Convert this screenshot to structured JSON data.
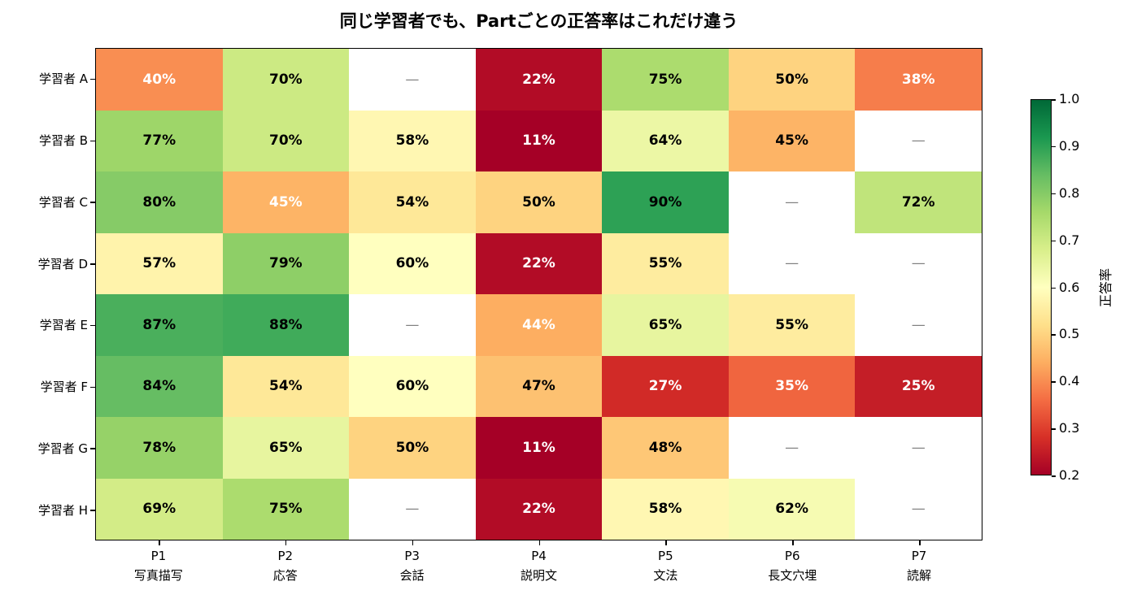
{
  "title": "同じ学習者でも、Partごとの正答率はこれだけ違う",
  "chart_data": {
    "type": "heatmap",
    "rows": [
      "学習者 A",
      "学習者 B",
      "学習者 C",
      "学習者 D",
      "学習者 E",
      "学習者 F",
      "学習者 G",
      "学習者 H"
    ],
    "columns": [
      {
        "part": "P1",
        "name": "写真描写"
      },
      {
        "part": "P2",
        "name": "応答"
      },
      {
        "part": "P3",
        "name": "会話"
      },
      {
        "part": "P4",
        "name": "説明文"
      },
      {
        "part": "P5",
        "name": "文法"
      },
      {
        "part": "P6",
        "name": "長文穴埋"
      },
      {
        "part": "P7",
        "name": "読解"
      }
    ],
    "null_label": "—",
    "cells": [
      [
        {
          "v": 40,
          "t": "40%",
          "c": "light"
        },
        {
          "v": 70,
          "t": "70%",
          "c": "dark"
        },
        {
          "v": null,
          "t": "—",
          "c": "na"
        },
        {
          "v": 22,
          "t": "22%",
          "c": "light"
        },
        {
          "v": 75,
          "t": "75%",
          "c": "dark"
        },
        {
          "v": 50,
          "t": "50%",
          "c": "dark"
        },
        {
          "v": 38,
          "t": "38%",
          "c": "light"
        }
      ],
      [
        {
          "v": 77,
          "t": "77%",
          "c": "dark"
        },
        {
          "v": 70,
          "t": "70%",
          "c": "dark"
        },
        {
          "v": 58,
          "t": "58%",
          "c": "dark"
        },
        {
          "v": 11,
          "t": "11%",
          "c": "light"
        },
        {
          "v": 64,
          "t": "64%",
          "c": "dark"
        },
        {
          "v": 45,
          "t": "45%",
          "c": "dark"
        },
        {
          "v": null,
          "t": "—",
          "c": "na"
        }
      ],
      [
        {
          "v": 80,
          "t": "80%",
          "c": "dark"
        },
        {
          "v": 45,
          "t": "45%",
          "c": "light"
        },
        {
          "v": 54,
          "t": "54%",
          "c": "dark"
        },
        {
          "v": 50,
          "t": "50%",
          "c": "dark"
        },
        {
          "v": 90,
          "t": "90%",
          "c": "dark"
        },
        {
          "v": null,
          "t": "—",
          "c": "na"
        },
        {
          "v": 72,
          "t": "72%",
          "c": "dark"
        }
      ],
      [
        {
          "v": 57,
          "t": "57%",
          "c": "dark"
        },
        {
          "v": 79,
          "t": "79%",
          "c": "dark"
        },
        {
          "v": 60,
          "t": "60%",
          "c": "dark"
        },
        {
          "v": 22,
          "t": "22%",
          "c": "light"
        },
        {
          "v": 55,
          "t": "55%",
          "c": "dark"
        },
        {
          "v": null,
          "t": "—",
          "c": "na"
        },
        {
          "v": null,
          "t": "—",
          "c": "na"
        }
      ],
      [
        {
          "v": 87,
          "t": "87%",
          "c": "dark"
        },
        {
          "v": 88,
          "t": "88%",
          "c": "dark"
        },
        {
          "v": null,
          "t": "—",
          "c": "na"
        },
        {
          "v": 44,
          "t": "44%",
          "c": "light"
        },
        {
          "v": 65,
          "t": "65%",
          "c": "dark"
        },
        {
          "v": 55,
          "t": "55%",
          "c": "dark"
        },
        {
          "v": null,
          "t": "—",
          "c": "na"
        }
      ],
      [
        {
          "v": 84,
          "t": "84%",
          "c": "dark"
        },
        {
          "v": 54,
          "t": "54%",
          "c": "dark"
        },
        {
          "v": 60,
          "t": "60%",
          "c": "dark"
        },
        {
          "v": 47,
          "t": "47%",
          "c": "dark"
        },
        {
          "v": 27,
          "t": "27%",
          "c": "light"
        },
        {
          "v": 35,
          "t": "35%",
          "c": "light"
        },
        {
          "v": 25,
          "t": "25%",
          "c": "light"
        }
      ],
      [
        {
          "v": 78,
          "t": "78%",
          "c": "dark"
        },
        {
          "v": 65,
          "t": "65%",
          "c": "dark"
        },
        {
          "v": 50,
          "t": "50%",
          "c": "dark"
        },
        {
          "v": 11,
          "t": "11%",
          "c": "light"
        },
        {
          "v": 48,
          "t": "48%",
          "c": "dark"
        },
        {
          "v": null,
          "t": "—",
          "c": "na"
        },
        {
          "v": null,
          "t": "—",
          "c": "na"
        }
      ],
      [
        {
          "v": 69,
          "t": "69%",
          "c": "dark"
        },
        {
          "v": 75,
          "t": "75%",
          "c": "dark"
        },
        {
          "v": null,
          "t": "—",
          "c": "na"
        },
        {
          "v": 22,
          "t": "22%",
          "c": "light"
        },
        {
          "v": 58,
          "t": "58%",
          "c": "dark"
        },
        {
          "v": 62,
          "t": "62%",
          "c": "dark"
        },
        {
          "v": null,
          "t": "—",
          "c": "na"
        }
      ]
    ],
    "colormap": "RdYlGn",
    "colormap_colors": [
      "#a50026",
      "#d73027",
      "#f46d43",
      "#fdae61",
      "#fee08b",
      "#ffffbf",
      "#d9ef8b",
      "#a6d96a",
      "#66bd63",
      "#1a9850",
      "#006837"
    ],
    "vmin": 0.2,
    "vmax": 1.0,
    "colorbar": {
      "label": "正答率",
      "ticks": [
        "1.0",
        "0.9",
        "0.8",
        "0.7",
        "0.6",
        "0.5",
        "0.4",
        "0.3",
        "0.2"
      ]
    },
    "text_colors": {
      "dark": "#000000",
      "light": "#ffffff",
      "na": "#7f7f7f"
    },
    "na_bg": "#ffffff"
  }
}
